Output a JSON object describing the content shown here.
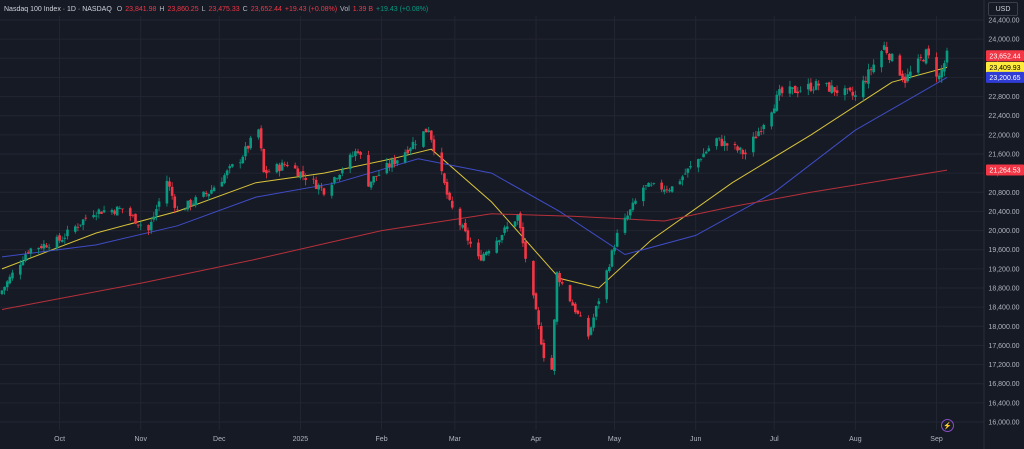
{
  "legend": {
    "symbol": "Nasdaq 100 Index · 1D · NASDAQ",
    "open_label": "O",
    "open": "23,841.98",
    "high_label": "H",
    "high": "23,860.25",
    "low_label": "L",
    "low": "23,475.33",
    "close_label": "C",
    "close": "23,652.44",
    "change": "+19.43 (+0.08%)",
    "vol_label": "Vol",
    "vol": "1.39 B",
    "change2": "+19.43 (+0.08%)"
  },
  "currency": "USD",
  "colors": {
    "up": "#089981",
    "down": "#f23645",
    "sma_fast": "#d8c33a",
    "sma_mid": "#3f4cc6",
    "sma_slow": "#b7303a"
  },
  "price_badges": [
    {
      "text": "23,652.44",
      "value": 23652.44,
      "bg": "#f23645",
      "fg": "#ffffff"
    },
    {
      "text": "23,409.93",
      "value": 23409.93,
      "bg": "#ffeb3b",
      "fg": "#000000"
    },
    {
      "text": "23,200.65",
      "value": 23200.65,
      "bg": "#2f3cd6",
      "fg": "#ffffff"
    },
    {
      "text": "21,264.53",
      "value": 21264.53,
      "bg": "#f23645",
      "fg": "#ffffff"
    }
  ],
  "chart_data": {
    "type": "candlestick",
    "y_ticks": [
      "24,400.00",
      "24,000.00",
      "23,600.00",
      "23,200.00",
      "22,800.00",
      "22,400.00",
      "22,000.00",
      "21,600.00",
      "21,200.00",
      "20,800.00",
      "20,400.00",
      "20,000.00",
      "19,600.00",
      "19,200.00",
      "18,800.00",
      "18,400.00",
      "18,000.00",
      "17,600.00",
      "17,200.00",
      "16,800.00",
      "16,400.00",
      "16,000.00"
    ],
    "ylim": [
      16000,
      24400
    ],
    "x_ticks": [
      "Oct",
      "Nov",
      "Dec",
      "2025",
      "Feb",
      "Mar",
      "Apr",
      "May",
      "Jun",
      "Jul",
      "Aug",
      "Sep"
    ],
    "anchors": [
      {
        "date": "2024-09-09",
        "close": 18750
      },
      {
        "date": "2024-09-19",
        "close": 19600
      },
      {
        "date": "2024-10-01",
        "close": 19800
      },
      {
        "date": "2024-10-14",
        "close": 20400
      },
      {
        "date": "2024-10-25",
        "close": 20450
      },
      {
        "date": "2024-11-04",
        "close": 20000
      },
      {
        "date": "2024-11-11",
        "close": 21050
      },
      {
        "date": "2024-11-15",
        "close": 20400
      },
      {
        "date": "2024-11-27",
        "close": 20800
      },
      {
        "date": "2024-12-09",
        "close": 21500
      },
      {
        "date": "2024-12-16",
        "close": 22100
      },
      {
        "date": "2024-12-18",
        "close": 21200
      },
      {
        "date": "2024-12-27",
        "close": 21400
      },
      {
        "date": "2025-01-10",
        "close": 20850
      },
      {
        "date": "2025-01-23",
        "close": 21700
      },
      {
        "date": "2025-01-27",
        "close": 21000
      },
      {
        "date": "2025-02-07",
        "close": 21500
      },
      {
        "date": "2025-02-19",
        "close": 22150
      },
      {
        "date": "2025-02-27",
        "close": 20550
      },
      {
        "date": "2025-03-10",
        "close": 19400
      },
      {
        "date": "2025-03-25",
        "close": 20300
      },
      {
        "date": "2025-04-04",
        "close": 17400
      },
      {
        "date": "2025-04-07",
        "close": 17100
      },
      {
        "date": "2025-04-09",
        "close": 19100
      },
      {
        "date": "2025-04-21",
        "close": 17800
      },
      {
        "date": "2025-05-02",
        "close": 19900
      },
      {
        "date": "2025-05-12",
        "close": 20900
      },
      {
        "date": "2025-05-23",
        "close": 20900
      },
      {
        "date": "2025-06-09",
        "close": 21900
      },
      {
        "date": "2025-06-20",
        "close": 21600
      },
      {
        "date": "2025-07-03",
        "close": 22850
      },
      {
        "date": "2025-07-18",
        "close": 23050
      },
      {
        "date": "2025-08-01",
        "close": 22800
      },
      {
        "date": "2025-08-12",
        "close": 23850
      },
      {
        "date": "2025-08-20",
        "close": 23150
      },
      {
        "date": "2025-08-28",
        "close": 23700
      },
      {
        "date": "2025-09-02",
        "close": 23200
      },
      {
        "date": "2025-09-05",
        "close": 23652.44
      }
    ],
    "moving_averages": [
      {
        "color": "#d8c33a",
        "points": [
          {
            "date": "2024-09-09",
            "value": 19200
          },
          {
            "date": "2024-10-15",
            "value": 19950
          },
          {
            "date": "2024-11-15",
            "value": 20400
          },
          {
            "date": "2024-12-15",
            "value": 21000
          },
          {
            "date": "2025-01-10",
            "value": 21200
          },
          {
            "date": "2025-02-05",
            "value": 21500
          },
          {
            "date": "2025-02-20",
            "value": 21700
          },
          {
            "date": "2025-03-15",
            "value": 20600
          },
          {
            "date": "2025-04-10",
            "value": 19000
          },
          {
            "date": "2025-04-25",
            "value": 18800
          },
          {
            "date": "2025-05-15",
            "value": 19800
          },
          {
            "date": "2025-06-15",
            "value": 21000
          },
          {
            "date": "2025-07-15",
            "value": 22000
          },
          {
            "date": "2025-08-15",
            "value": 23100
          },
          {
            "date": "2025-09-05",
            "value": 23409.93
          }
        ]
      },
      {
        "color": "#3f4cc6",
        "points": [
          {
            "date": "2024-09-09",
            "value": 19450
          },
          {
            "date": "2024-10-15",
            "value": 19700
          },
          {
            "date": "2024-11-15",
            "value": 20100
          },
          {
            "date": "2024-12-15",
            "value": 20700
          },
          {
            "date": "2025-01-15",
            "value": 21000
          },
          {
            "date": "2025-02-15",
            "value": 21500
          },
          {
            "date": "2025-03-15",
            "value": 21200
          },
          {
            "date": "2025-04-10",
            "value": 20400
          },
          {
            "date": "2025-05-05",
            "value": 19500
          },
          {
            "date": "2025-06-01",
            "value": 19900
          },
          {
            "date": "2025-07-01",
            "value": 20800
          },
          {
            "date": "2025-08-01",
            "value": 22100
          },
          {
            "date": "2025-09-05",
            "value": 23200.65
          }
        ]
      },
      {
        "color": "#b7303a",
        "points": [
          {
            "date": "2024-09-09",
            "value": 18350
          },
          {
            "date": "2024-11-01",
            "value": 18900
          },
          {
            "date": "2024-12-15",
            "value": 19400
          },
          {
            "date": "2025-02-01",
            "value": 20000
          },
          {
            "date": "2025-03-15",
            "value": 20350
          },
          {
            "date": "2025-04-15",
            "value": 20300
          },
          {
            "date": "2025-05-20",
            "value": 20200
          },
          {
            "date": "2025-06-15",
            "value": 20500
          },
          {
            "date": "2025-07-15",
            "value": 20800
          },
          {
            "date": "2025-09-05",
            "value": 21264.53
          }
        ]
      }
    ]
  }
}
